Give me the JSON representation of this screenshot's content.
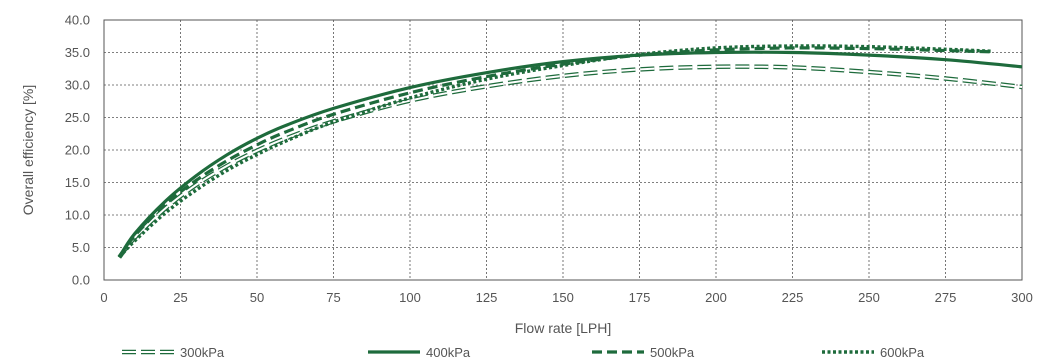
{
  "chart_data": {
    "type": "line",
    "title": "",
    "xlabel": "Flow rate [LPH]",
    "ylabel": "Overall efficiency [%]",
    "xlim": [
      0,
      300
    ],
    "ylim": [
      0,
      40
    ],
    "xticks": [
      0,
      25,
      50,
      75,
      100,
      125,
      150,
      175,
      200,
      225,
      250,
      275,
      300
    ],
    "yticks": [
      0,
      5,
      10,
      15,
      20,
      25,
      30,
      35,
      40
    ],
    "ytick_labels": [
      "0.0",
      "5.0",
      "10.0",
      "15.0",
      "20.0",
      "25.0",
      "30.0",
      "35.0",
      "40.0"
    ],
    "grid": true,
    "legend_position": "bottom",
    "series": [
      {
        "name": "300kPa",
        "style": "double-dashed",
        "color": "#1e6b3c",
        "x": [
          5,
          10,
          20,
          30,
          40,
          50,
          60,
          75,
          100,
          125,
          150,
          175,
          200,
          225,
          250,
          275,
          300
        ],
        "y": [
          3.5,
          6.5,
          11.0,
          14.6,
          17.5,
          19.9,
          21.9,
          24.4,
          27.6,
          29.8,
          31.4,
          32.4,
          32.8,
          32.7,
          32.0,
          31.0,
          29.7
        ]
      },
      {
        "name": "400kPa",
        "style": "solid",
        "color": "#1e6b3c",
        "x": [
          5,
          10,
          20,
          30,
          40,
          50,
          60,
          75,
          100,
          125,
          150,
          175,
          200,
          225,
          250,
          275,
          300
        ],
        "y": [
          3.5,
          7.1,
          12.1,
          16.0,
          19.2,
          21.8,
          23.9,
          26.4,
          29.6,
          31.9,
          33.6,
          34.6,
          35.0,
          35.0,
          34.6,
          33.9,
          32.8
        ]
      },
      {
        "name": "500kPa",
        "style": "dashed",
        "color": "#1e6b3c",
        "x": [
          5,
          10,
          20,
          30,
          40,
          50,
          60,
          75,
          100,
          125,
          150,
          175,
          200,
          225,
          250,
          275,
          290
        ],
        "y": [
          3.5,
          6.8,
          11.6,
          15.3,
          18.3,
          20.8,
          22.9,
          25.5,
          28.8,
          31.3,
          33.2,
          34.6,
          35.4,
          35.7,
          35.6,
          35.3,
          35.1
        ]
      },
      {
        "name": "600kPa",
        "style": "dotted",
        "color": "#1e6b3c",
        "x": [
          5,
          10,
          20,
          30,
          40,
          50,
          60,
          75,
          100,
          125,
          150,
          175,
          200,
          225,
          250,
          275,
          290
        ],
        "y": [
          3.5,
          6.0,
          10.3,
          13.8,
          16.8,
          19.3,
          21.5,
          24.3,
          28.0,
          30.9,
          33.0,
          34.7,
          35.7,
          36.0,
          35.9,
          35.5,
          35.2
        ]
      }
    ]
  }
}
